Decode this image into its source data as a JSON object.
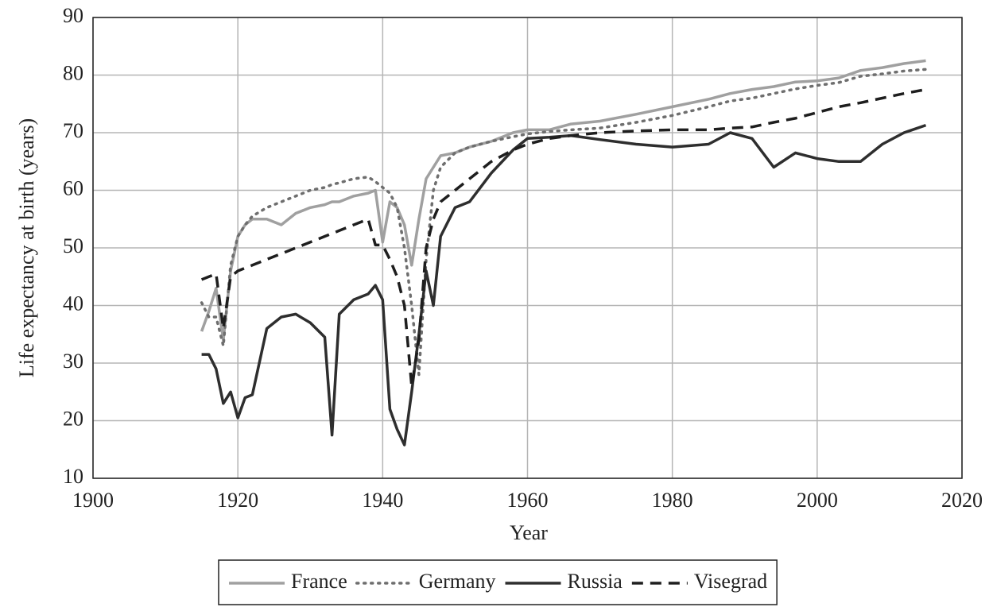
{
  "chart_data": {
    "type": "line",
    "xlabel": "Year",
    "ylabel": "Life expectancy at birth (years)",
    "xlim": [
      1900,
      2020
    ],
    "xticks": [
      1900,
      1920,
      1940,
      1960,
      1980,
      2000,
      2020
    ],
    "ylim": [
      10,
      90
    ],
    "yticks": [
      10,
      20,
      30,
      40,
      50,
      60,
      70,
      80,
      90
    ],
    "grid": true,
    "legend": "bottom",
    "x": [
      1915,
      1916,
      1917,
      1918,
      1919,
      1920,
      1921,
      1922,
      1924,
      1926,
      1928,
      1930,
      1932,
      1933,
      1934,
      1936,
      1938,
      1939,
      1940,
      1941,
      1942,
      1943,
      1944,
      1945,
      1946,
      1947,
      1948,
      1950,
      1952,
      1955,
      1958,
      1960,
      1963,
      1966,
      1970,
      1975,
      1980,
      1985,
      1988,
      1991,
      1994,
      1997,
      2000,
      2003,
      2006,
      2009,
      2012,
      2015
    ],
    "series": [
      {
        "name": "France",
        "color": "#a0a0a0",
        "dash": "solid",
        "values": [
          35.5,
          39,
          43,
          34,
          46,
          52,
          54,
          55,
          55,
          54,
          56,
          57,
          57.5,
          58,
          58,
          59,
          59.5,
          60,
          51,
          58,
          57,
          54,
          47,
          55,
          62,
          64,
          66,
          66.5,
          67.5,
          68.5,
          70,
          70.5,
          70.5,
          71.5,
          72,
          73.2,
          74.5,
          75.8,
          76.8,
          77.5,
          78,
          78.8,
          79,
          79.5,
          80.8,
          81.3,
          82,
          82.5
        ]
      },
      {
        "name": "Germany",
        "color": "#6e6e6e",
        "dash": "dotted",
        "values": [
          40.5,
          38,
          38,
          33,
          47,
          52,
          54,
          55.5,
          57,
          58,
          59,
          60,
          60.5,
          61,
          61.3,
          62,
          62.3,
          61.5,
          60.5,
          59.5,
          57,
          50,
          40,
          28,
          48,
          60,
          64,
          66.5,
          67.5,
          68.5,
          69.3,
          69.8,
          70.2,
          70.5,
          70.8,
          71.8,
          73,
          74.5,
          75.5,
          76,
          76.8,
          77.6,
          78.2,
          78.7,
          79.8,
          80.2,
          80.7,
          81
        ]
      },
      {
        "name": "Russia",
        "color": "#2e2e2e",
        "dash": "solid",
        "values": [
          31.5,
          31.5,
          29,
          23,
          25,
          20.5,
          24,
          24.5,
          36,
          38,
          38.5,
          37,
          34.5,
          17.5,
          38.5,
          41,
          42,
          43.5,
          41,
          22,
          18.5,
          15.8,
          25,
          35,
          46,
          40,
          52,
          57,
          58,
          63,
          67,
          69,
          69.2,
          69.5,
          68.8,
          68,
          67.5,
          68,
          70,
          69,
          64,
          66.5,
          65.5,
          65,
          65,
          68,
          70,
          71.3
        ]
      },
      {
        "name": "Visegrad",
        "color": "#1e1e1e",
        "dash": "dashed",
        "values": [
          44.5,
          45,
          45.5,
          36,
          45,
          46,
          46.5,
          47,
          48,
          49,
          50,
          51,
          52,
          52.5,
          53,
          54,
          55,
          50.5,
          50.5,
          48,
          45,
          40,
          26,
          34,
          50,
          55,
          58,
          60,
          62,
          65,
          67,
          68,
          69,
          69.5,
          70,
          70.3,
          70.5,
          70.5,
          70.8,
          71,
          71.8,
          72.5,
          73.5,
          74.5,
          75.2,
          76,
          76.8,
          77.5
        ]
      }
    ]
  }
}
